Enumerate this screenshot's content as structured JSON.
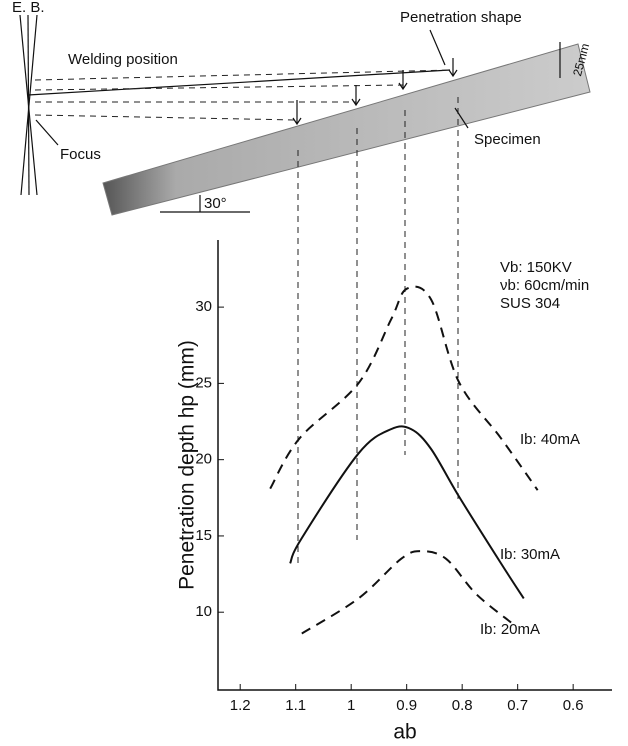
{
  "diagram": {
    "eb": "E. B.",
    "welding_position": "Welding position",
    "penetration_shape": "Penetration shape",
    "thickness": "25mm",
    "specimen": "Specimen",
    "focus": "Focus",
    "angle": "30°"
  },
  "chart_data": {
    "type": "line",
    "x_label": "ab",
    "y_label": "Penetration depth hp (mm)",
    "annotations": [
      "Vb: 150KV",
      "νb: 60cm/min",
      "SUS 304"
    ],
    "xlim": [
      1.24,
      0.53
    ],
    "xticks": [
      1.2,
      1.1,
      1.0,
      0.9,
      0.8,
      0.7,
      0.6
    ],
    "ylim": [
      4.9,
      34.4
    ],
    "yticks": [
      10,
      15,
      20,
      25,
      30
    ],
    "series": [
      {
        "name": "Ib: 40mA",
        "color": "#111111",
        "dashed": true,
        "x": [
          1.146,
          1.093,
          0.987,
          0.928,
          0.9,
          0.856,
          0.806,
          0.73,
          0.664
        ],
        "values": [
          18.1,
          21.4,
          25,
          29.2,
          31.2,
          30.5,
          25.1,
          21.4,
          18
        ]
      },
      {
        "name": "Ib: 30mA",
        "color": "#111111",
        "dashed": false,
        "x": [
          1.11,
          1.09,
          0.987,
          0.928,
          0.892,
          0.856,
          0.806,
          0.73,
          0.689
        ],
        "values": [
          13.2,
          14.8,
          20.4,
          22,
          22,
          20.7,
          17.6,
          13.2,
          10.9
        ]
      },
      {
        "name": "Ib: 20mA",
        "color": "#111111",
        "dashed": true,
        "x": [
          1.089,
          0.987,
          0.91,
          0.874,
          0.829,
          0.775,
          0.711
        ],
        "values": [
          8.6,
          10.9,
          13.5,
          14,
          13.5,
          11.2,
          9.3
        ]
      }
    ]
  }
}
